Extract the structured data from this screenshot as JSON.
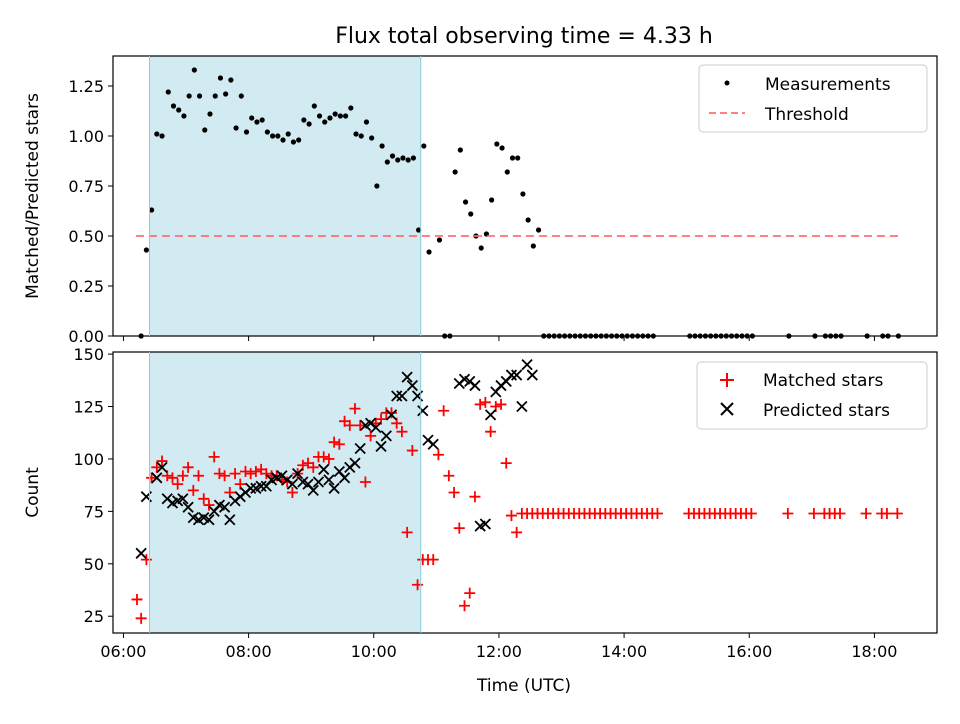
{
  "chart_data": [
    {
      "type": "scatter",
      "title": "Flux total observing time = 4.33 h",
      "xlabel": "",
      "ylabel": "Matched/Predicted stars",
      "xlim": [
        "05:50",
        "19:00"
      ],
      "ylim": [
        0,
        1.4
      ],
      "yticks": [
        "0.00",
        "0.25",
        "0.50",
        "0.75",
        "1.00",
        "1.25"
      ],
      "shaded_interval": {
        "start": "06:25",
        "end": "10:45",
        "color": "#add8e6"
      },
      "legend": {
        "placement": "top-right",
        "entries": [
          "Measurements",
          "Threshold"
        ]
      },
      "series": [
        {
          "name": "Measurements",
          "marker": "dot",
          "color": "#000000",
          "x": [
            "06:17",
            "06:22",
            "06:27",
            "06:32",
            "06:37",
            "06:43",
            "06:48",
            "06:53",
            "06:58",
            "07:03",
            "07:08",
            "07:13",
            "07:18",
            "07:23",
            "07:28",
            "07:33",
            "07:38",
            "07:43",
            "07:48",
            "07:53",
            "07:58",
            "08:03",
            "08:08",
            "08:13",
            "08:18",
            "08:23",
            "08:28",
            "08:33",
            "08:38",
            "08:43",
            "08:48",
            "08:53",
            "08:58",
            "09:03",
            "09:08",
            "09:13",
            "09:18",
            "09:23",
            "09:28",
            "09:33",
            "09:38",
            "09:43",
            "09:48",
            "09:53",
            "09:58",
            "10:03",
            "10:08",
            "10:13",
            "10:18",
            "10:23",
            "10:28",
            "10:33",
            "10:38",
            "10:43",
            "10:48",
            "10:53",
            "11:03",
            "11:08",
            "11:13",
            "11:18",
            "11:23",
            "11:28",
            "11:33",
            "11:38",
            "11:43",
            "11:48",
            "11:53",
            "11:58",
            "12:03",
            "12:08",
            "12:13",
            "12:18",
            "12:23",
            "12:28",
            "12:33",
            "12:38",
            "12:43",
            "12:48",
            "12:53",
            "12:58",
            "13:03",
            "13:08",
            "13:13",
            "13:18",
            "13:23",
            "13:28",
            "13:33",
            "13:38",
            "13:43",
            "13:48",
            "13:53",
            "13:58",
            "14:03",
            "14:08",
            "14:13",
            "14:18",
            "14:23",
            "14:28",
            "15:03",
            "15:08",
            "15:13",
            "15:18",
            "15:23",
            "15:28",
            "15:33",
            "15:38",
            "15:43",
            "15:48",
            "15:53",
            "15:58",
            "16:03",
            "16:38",
            "17:03",
            "17:13",
            "17:18",
            "17:23",
            "17:28",
            "17:53",
            "18:08",
            "18:13",
            "18:23"
          ],
          "y": [
            0,
            0.43,
            0.63,
            1.01,
            1.0,
            1.22,
            1.15,
            1.13,
            1.1,
            1.2,
            1.33,
            1.2,
            1.03,
            1.11,
            1.2,
            1.29,
            1.21,
            1.28,
            1.04,
            1.2,
            1.02,
            1.09,
            1.07,
            1.08,
            1.02,
            1.0,
            1.0,
            0.98,
            1.01,
            0.97,
            0.98,
            1.08,
            1.06,
            1.15,
            1.1,
            1.07,
            1.09,
            1.11,
            1.1,
            1.1,
            1.14,
            1.01,
            1.0,
            1.07,
            0.99,
            0.75,
            0.95,
            0.87,
            0.9,
            0.88,
            0.89,
            0.88,
            0.89,
            0.53,
            0.95,
            0.42,
            0.48,
            0,
            0,
            0.82,
            0.93,
            0.67,
            0.61,
            0.5,
            0.44,
            0.51,
            0.68,
            0.96,
            0.94,
            0.82,
            0.89,
            0.89,
            0.71,
            0.58,
            0.45,
            0.53,
            0,
            0,
            0,
            0,
            0,
            0,
            0,
            0,
            0,
            0,
            0,
            0,
            0,
            0,
            0,
            0,
            0,
            0,
            0,
            0,
            0,
            0,
            0,
            0,
            0,
            0,
            0,
            0,
            0,
            0,
            0,
            0,
            0,
            0,
            0,
            0,
            0,
            0,
            0,
            0,
            0,
            0,
            0,
            0,
            0
          ]
        },
        {
          "name": "Threshold",
          "style": "dashed",
          "color": "#ff6b6b",
          "x": [
            "06:12",
            "18:25"
          ],
          "y": [
            0.5,
            0.5
          ]
        }
      ]
    },
    {
      "type": "scatter",
      "title": "",
      "xlabel": "Time (UTC)",
      "ylabel": "Count",
      "xlim": [
        "05:50",
        "19:00"
      ],
      "ylim": [
        17,
        151
      ],
      "yticks": [
        "25",
        "50",
        "75",
        "100",
        "125",
        "150"
      ],
      "xticks": [
        "06:00",
        "08:00",
        "10:00",
        "12:00",
        "14:00",
        "16:00",
        "18:00"
      ],
      "shaded_interval": {
        "start": "06:25",
        "end": "10:45",
        "color": "#add8e6"
      },
      "legend": {
        "placement": "top-right",
        "entries": [
          "Matched stars",
          "Predicted stars"
        ]
      },
      "series": [
        {
          "name": "Matched stars",
          "marker": "plus",
          "color": "#ff0000",
          "x": [
            "06:13",
            "06:17",
            "06:22",
            "06:27",
            "06:32",
            "06:37",
            "06:42",
            "06:47",
            "06:52",
            "06:57",
            "07:02",
            "07:07",
            "07:12",
            "07:17",
            "07:22",
            "07:27",
            "07:32",
            "07:37",
            "07:42",
            "07:47",
            "07:52",
            "07:57",
            "08:02",
            "08:07",
            "08:12",
            "08:17",
            "08:22",
            "08:27",
            "08:32",
            "08:37",
            "08:42",
            "08:47",
            "08:52",
            "08:57",
            "09:02",
            "09:07",
            "09:12",
            "09:17",
            "09:22",
            "09:27",
            "09:32",
            "09:37",
            "09:42",
            "09:47",
            "09:52",
            "09:57",
            "10:02",
            "10:07",
            "10:12",
            "10:17",
            "10:22",
            "10:27",
            "10:32",
            "10:37",
            "10:42",
            "10:47",
            "10:52",
            "10:57",
            "11:02",
            "11:07",
            "11:12",
            "11:17",
            "11:22",
            "11:27",
            "11:32",
            "11:37",
            "11:42",
            "11:47",
            "11:52",
            "11:57",
            "12:02",
            "12:07",
            "12:12",
            "12:17",
            "12:22",
            "12:27",
            "12:32",
            "12:37",
            "12:42",
            "12:47",
            "12:52",
            "12:57",
            "13:02",
            "13:07",
            "13:12",
            "13:17",
            "13:22",
            "13:27",
            "13:32",
            "13:37",
            "13:42",
            "13:47",
            "13:52",
            "13:57",
            "14:02",
            "14:07",
            "14:12",
            "14:17",
            "14:22",
            "14:27",
            "14:32",
            "15:02",
            "15:07",
            "15:12",
            "15:17",
            "15:22",
            "15:27",
            "15:32",
            "15:37",
            "15:42",
            "15:47",
            "15:52",
            "15:57",
            "16:02",
            "16:37",
            "17:02",
            "17:12",
            "17:17",
            "17:22",
            "17:27",
            "17:52",
            "18:07",
            "18:12",
            "18:22"
          ],
          "y": [
            33,
            24,
            52,
            91,
            96,
            99,
            92,
            91,
            88,
            92,
            96,
            85,
            92,
            81,
            78,
            101,
            93,
            92,
            84,
            93,
            88,
            94,
            93,
            94,
            95,
            93,
            92,
            92,
            90,
            89,
            84,
            93,
            97,
            98,
            96,
            101,
            101,
            100,
            108,
            107,
            118,
            116,
            124,
            116,
            89,
            111,
            117,
            119,
            122,
            122,
            117,
            113,
            65,
            104,
            40,
            52,
            52,
            52,
            102,
            123,
            92,
            84,
            67,
            30,
            36,
            82,
            126,
            127,
            113,
            125,
            126,
            98,
            73,
            65,
            74,
            74,
            74,
            74,
            74,
            74,
            74,
            74,
            74,
            74,
            74,
            74,
            74,
            74,
            74,
            74,
            74,
            74,
            74,
            74,
            74,
            74,
            74,
            74,
            74,
            74,
            74,
            74,
            74,
            74,
            74,
            74,
            74,
            74,
            74,
            74,
            74,
            74,
            74,
            74,
            74,
            74,
            74,
            74,
            74,
            74,
            74,
            74,
            74,
            74
          ]
        },
        {
          "name": "Predicted stars",
          "marker": "cross",
          "color": "#000000",
          "x": [
            "06:17",
            "06:22",
            "06:32",
            "06:37",
            "06:42",
            "06:47",
            "06:52",
            "06:57",
            "07:02",
            "07:07",
            "07:12",
            "07:17",
            "07:22",
            "07:27",
            "07:32",
            "07:37",
            "07:42",
            "07:47",
            "07:52",
            "07:57",
            "08:02",
            "08:07",
            "08:12",
            "08:17",
            "08:22",
            "08:27",
            "08:32",
            "08:37",
            "08:42",
            "08:47",
            "08:52",
            "08:57",
            "09:02",
            "09:07",
            "09:12",
            "09:17",
            "09:22",
            "09:27",
            "09:32",
            "09:37",
            "09:42",
            "09:47",
            "09:52",
            "09:57",
            "10:02",
            "10:07",
            "10:12",
            "10:17",
            "10:22",
            "10:27",
            "10:32",
            "10:37",
            "10:42",
            "10:47",
            "10:52",
            "10:57",
            "11:22",
            "11:27",
            "11:32",
            "11:37",
            "11:42",
            "11:47",
            "11:52",
            "11:57",
            "12:02",
            "12:07",
            "12:12",
            "12:17",
            "12:22",
            "12:27",
            "12:32"
          ],
          "y": [
            55,
            82,
            91,
            96,
            81,
            79,
            80,
            81,
            77,
            72,
            71,
            72,
            71,
            75,
            78,
            77,
            71,
            80,
            82,
            84,
            86,
            86,
            87,
            87,
            90,
            91,
            92,
            90,
            88,
            93,
            89,
            88,
            85,
            89,
            95,
            90,
            86,
            94,
            91,
            96,
            98,
            105,
            116,
            117,
            115,
            106,
            111,
            121,
            130,
            130,
            139,
            135,
            130,
            123,
            109,
            107,
            136,
            138,
            137,
            135,
            68,
            69,
            121,
            132,
            135,
            137,
            140,
            140,
            125,
            145,
            140
          ]
        }
      ]
    }
  ]
}
